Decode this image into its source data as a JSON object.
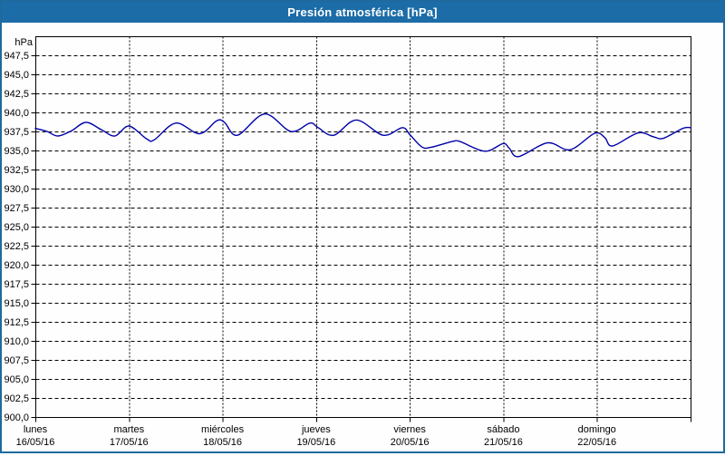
{
  "window": {
    "title": "Presión atmosférica [hPa]",
    "title_bar_color": "#1b6ca7",
    "border_color": "#1e6a9f",
    "background": "#fdfefd"
  },
  "chart_data": {
    "type": "line",
    "title": "Presión atmosférica [hPa]",
    "unit_label": "hPa",
    "ylabel": "hPa",
    "xlabel": "",
    "grid": true,
    "legend": "none",
    "y_min": 900,
    "y_max": 950,
    "y_tick_step": 2.5,
    "y_ticks": [
      900,
      902.5,
      905,
      907.5,
      910,
      912.5,
      915,
      917.5,
      920,
      922.5,
      925,
      927.5,
      930,
      932.5,
      935,
      937.5,
      940,
      942.5,
      945,
      947.5
    ],
    "y_tick_labels": [
      "900,0",
      "902,5",
      "905,0",
      "907,5",
      "910,0",
      "912,5",
      "915,0",
      "917,5",
      "920,0",
      "922,5",
      "925,0",
      "927,5",
      "930,0",
      "932,5",
      "935,0",
      "937,5",
      "940,0",
      "942,5",
      "945,0",
      "947,5"
    ],
    "x_hours_total": 168,
    "categories": [
      {
        "name": "lunes",
        "date": "16/05/16"
      },
      {
        "name": "martes",
        "date": "17/05/16"
      },
      {
        "name": "miércoles",
        "date": "18/05/16"
      },
      {
        "name": "jueves",
        "date": "19/05/16"
      },
      {
        "name": "viernes",
        "date": "20/05/16"
      },
      {
        "name": "sábado",
        "date": "21/05/16"
      },
      {
        "name": "domingo",
        "date": "22/05/16"
      }
    ],
    "line_color": "#0000aa",
    "grid_color": "#000000",
    "series": [
      {
        "name": "Presión atmosférica",
        "points_hours_hpa": [
          [
            0,
            937.9
          ],
          [
            3,
            937.5
          ],
          [
            5.8,
            936.9
          ],
          [
            9.3,
            937.6
          ],
          [
            13,
            938.7
          ],
          [
            17,
            937.7
          ],
          [
            20.4,
            936.9
          ],
          [
            24,
            938.2
          ],
          [
            28.6,
            936.5
          ],
          [
            30.5,
            936.4
          ],
          [
            36,
            938.6
          ],
          [
            42.1,
            937.2
          ],
          [
            46.5,
            938.9
          ],
          [
            48.5,
            938.7
          ],
          [
            51.8,
            937.0
          ],
          [
            58.8,
            939.8
          ],
          [
            65.5,
            937.5
          ],
          [
            70.4,
            938.6
          ],
          [
            72.5,
            938.0
          ],
          [
            76.5,
            937.0
          ],
          [
            82.3,
            939.0
          ],
          [
            89.2,
            937.0
          ],
          [
            94.1,
            938.0
          ],
          [
            96,
            937.1
          ],
          [
            99,
            935.5
          ],
          [
            101.3,
            935.4
          ],
          [
            107,
            936.2
          ],
          [
            109,
            936.15
          ],
          [
            115.3,
            934.9
          ],
          [
            119.9,
            935.9
          ],
          [
            121.5,
            935.3
          ],
          [
            123.9,
            934.2
          ],
          [
            131.3,
            936.0
          ],
          [
            137.1,
            935.1
          ],
          [
            143.4,
            937.25
          ],
          [
            146,
            936.7
          ],
          [
            148,
            935.6
          ],
          [
            154.5,
            937.3
          ],
          [
            158.5,
            936.8
          ],
          [
            161,
            936.6
          ],
          [
            166,
            937.9
          ],
          [
            168,
            938.0
          ]
        ]
      }
    ]
  }
}
